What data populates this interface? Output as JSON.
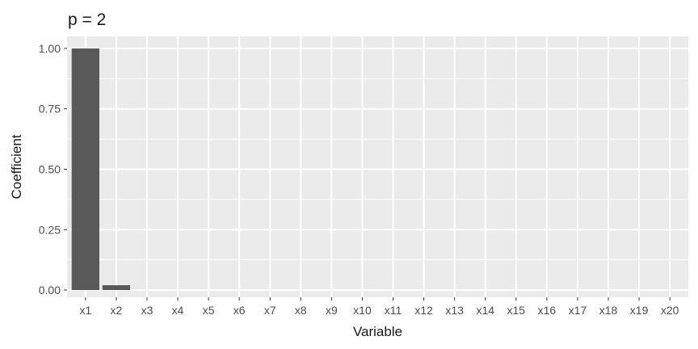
{
  "chart_data": {
    "type": "bar",
    "title": "p = 2",
    "xlabel": "Variable",
    "ylabel": "Coefficient",
    "categories": [
      "x1",
      "x2",
      "x3",
      "x4",
      "x5",
      "x6",
      "x7",
      "x8",
      "x9",
      "x10",
      "x11",
      "x12",
      "x13",
      "x14",
      "x15",
      "x16",
      "x17",
      "x18",
      "x19",
      "x20"
    ],
    "values": [
      1.0,
      0.02,
      0,
      0,
      0,
      0,
      0,
      0,
      0,
      0,
      0,
      0,
      0,
      0,
      0,
      0,
      0,
      0,
      0,
      0
    ],
    "ylim": [
      -0.03,
      1.05
    ],
    "yticks": [
      0.0,
      0.25,
      0.5,
      0.75,
      1.0
    ],
    "ytick_labels": [
      "0.00",
      "0.25",
      "0.50",
      "0.75",
      "1.00"
    ],
    "grid": true,
    "legend": "none",
    "colors": {
      "bar": "#595959",
      "panel": "#ebebeb",
      "grid": "#ffffff"
    }
  }
}
